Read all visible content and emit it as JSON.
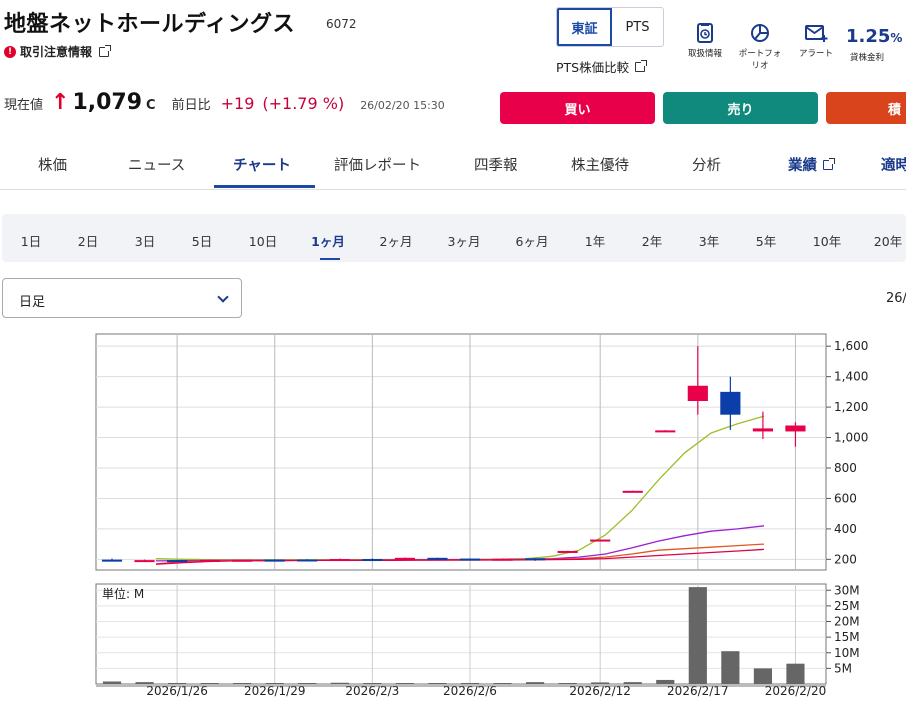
{
  "header": {
    "name": "地盤ネットホールディングス",
    "code": "6072",
    "notice": "取引注意情報",
    "market_tabs": [
      {
        "label": "東証",
        "active": true
      },
      {
        "label": "PTS",
        "active": false
      }
    ],
    "pts_compare": "PTS株価比較",
    "icons": [
      {
        "label": "取扱情報",
        "icon": "document-clock-icon"
      },
      {
        "label": "ポートフォリオ",
        "icon": "pie-chart-icon"
      },
      {
        "label": "アラート",
        "icon": "mail-plus-icon"
      }
    ],
    "lending_rate": {
      "value": "1.25",
      "unit": "%",
      "label": "貸株金利"
    }
  },
  "quote": {
    "price_label": "現在値",
    "price": "1,079",
    "price_flag": "C",
    "change_label": "前日比",
    "change": "+19",
    "change_pct": "(+1.79 %)",
    "timestamp": "26/02/20 15:30"
  },
  "trade_buttons": [
    {
      "label": "買い",
      "color": "#e8004a"
    },
    {
      "label": "売り",
      "color": "#0f8a7d"
    },
    {
      "label": "積",
      "color": "#d9441c"
    }
  ],
  "tabs": [
    "株価",
    "ニュース",
    "チャート",
    "評価レポート",
    "四季報",
    "株主優待",
    "分析",
    "業績",
    "適時"
  ],
  "active_tab": "チャート",
  "periods": [
    "1日",
    "2日",
    "3日",
    "5日",
    "10日",
    "1ヶ月",
    "2ヶ月",
    "3ヶ月",
    "6ヶ月",
    "1年",
    "2年",
    "3年",
    "5年",
    "10年",
    "20年"
  ],
  "active_period": "1ヶ月",
  "select": {
    "value": "日足"
  },
  "date_cut": "26/",
  "chart_data": {
    "type": "candlestick",
    "price_axis": {
      "ylim": [
        130,
        1680
      ],
      "ticks": [
        200,
        400,
        600,
        800,
        1000,
        1200,
        1400,
        1600
      ]
    },
    "volume_axis": {
      "unit_label": "単位: M",
      "ylim": [
        0,
        32
      ],
      "ticks": [
        5,
        10,
        15,
        20,
        25,
        30
      ],
      "tick_labels": [
        "5M",
        "10M",
        "15M",
        "20M",
        "25M",
        "30M"
      ]
    },
    "x_labels": [
      "2026/1/26",
      "2026/1/29",
      "2026/2/3",
      "2026/2/6",
      "2026/2/12",
      "2026/2/17",
      "2026/2/20"
    ],
    "candles": [
      {
        "o": 198,
        "h": 205,
        "l": 185,
        "c": 188,
        "v": 0.8
      },
      {
        "o": 190,
        "h": 198,
        "l": 188,
        "c": 195,
        "v": 0.6
      },
      {
        "o": 195,
        "h": 196,
        "l": 192,
        "c": 194,
        "v": 0.1
      },
      {
        "o": 195,
        "h": 198,
        "l": 193,
        "c": 196,
        "v": 0.1
      },
      {
        "o": 197,
        "h": 198,
        "l": 196,
        "c": 197,
        "v": 0.1
      },
      {
        "o": 198,
        "h": 200,
        "l": 196,
        "c": 197,
        "v": 0.1
      },
      {
        "o": 199,
        "h": 201,
        "l": 197,
        "c": 198,
        "v": 0.1
      },
      {
        "o": 200,
        "h": 205,
        "l": 195,
        "c": 202,
        "v": 0.4
      },
      {
        "o": 202,
        "h": 205,
        "l": 198,
        "c": 200,
        "v": 0.1
      },
      {
        "o": 208,
        "h": 212,
        "l": 202,
        "c": 210,
        "v": 0.2
      },
      {
        "o": 210,
        "h": 211,
        "l": 200,
        "c": 205,
        "v": 0.1
      },
      {
        "o": 205,
        "h": 206,
        "l": 200,
        "c": 203,
        "v": 0.1
      },
      {
        "o": 203,
        "h": 206,
        "l": 200,
        "c": 204,
        "v": 0.3
      },
      {
        "o": 207,
        "h": 208,
        "l": 190,
        "c": 195,
        "v": 0.6
      },
      {
        "o": 255,
        "h": 256,
        "l": 254,
        "c": 255,
        "v": 0.2
      },
      {
        "o": 330,
        "h": 331,
        "l": 329,
        "c": 330,
        "v": 0.5
      },
      {
        "o": 650,
        "h": 651,
        "l": 649,
        "c": 650,
        "v": 0.6
      },
      {
        "o": 1047,
        "h": 1049,
        "l": 1045,
        "c": 1047,
        "v": 1.3
      },
      {
        "o": 1240,
        "h": 1600,
        "l": 1150,
        "c": 1340,
        "v": 31.0
      },
      {
        "o": 1300,
        "h": 1400,
        "l": 1050,
        "c": 1150,
        "v": 10.5
      },
      {
        "o": 1040,
        "h": 1170,
        "l": 990,
        "c": 1060,
        "v": 5.0
      },
      {
        "o": 1040,
        "h": 1100,
        "l": 940,
        "c": 1079,
        "v": 6.5
      }
    ],
    "moving_averages": [
      {
        "color": "#9bbf2a",
        "values": [
          205,
          200,
          198,
          197,
          197,
          197,
          197,
          198,
          198,
          199,
          199,
          199,
          200,
          200,
          205,
          220,
          260,
          360,
          520,
          720,
          900,
          1030,
          1090,
          1140
        ]
      },
      {
        "color": "#9a1fd6",
        "values": [
          190,
          192,
          193,
          194,
          194,
          195,
          195,
          196,
          196,
          197,
          197,
          198,
          198,
          199,
          200,
          205,
          215,
          235,
          275,
          320,
          355,
          385,
          400,
          420
        ]
      },
      {
        "color": "#e0581f",
        "values": [
          170,
          185,
          190,
          191,
          192,
          193,
          193,
          194,
          194,
          195,
          195,
          196,
          196,
          197,
          198,
          200,
          205,
          215,
          235,
          260,
          270,
          280,
          290,
          300
        ]
      },
      {
        "color": "#e0004a",
        "values": [
          168,
          178,
          186,
          190,
          191,
          192,
          193,
          193,
          194,
          194,
          195,
          195,
          196,
          196,
          197,
          198,
          200,
          205,
          215,
          225,
          235,
          245,
          255,
          265
        ]
      }
    ]
  }
}
